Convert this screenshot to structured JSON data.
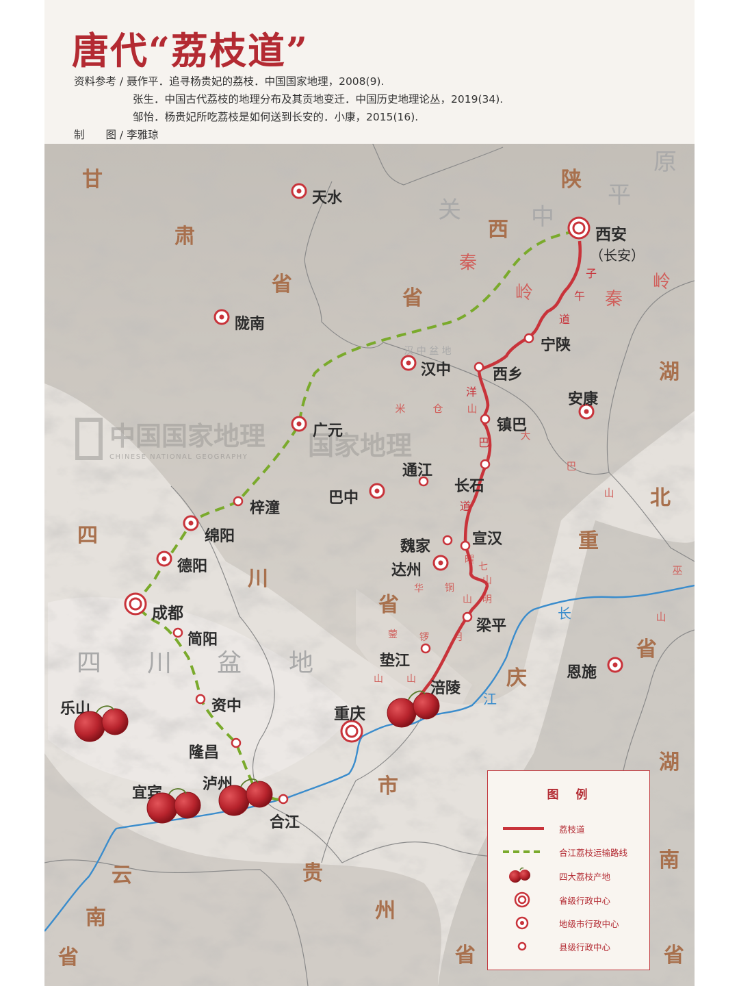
{
  "title": "唐代“荔枝道”",
  "references": {
    "label": "资料参考 / ",
    "items": [
      "聂作平．追寻杨贵妃的荔枝．中国国家地理，2008(9).",
      "张生．中国古代荔枝的地理分布及其贡地变迁．中国历史地理论丛，2019(34).",
      "邹怡．杨贵妃所吃荔枝是如何送到长安的．小康，2015(16)."
    ],
    "cartographer": "制　　图 / 李雅琼"
  },
  "watermark": "中国国家地理",
  "watermark2": "国家地理",
  "watermark_sub": "CHINESE NATIONAL GEOGRAPHY",
  "regions": [
    {
      "id": "gansu-1",
      "text": "甘"
    },
    {
      "id": "gansu-2",
      "text": "肃"
    },
    {
      "id": "gansu-3",
      "text": "省"
    },
    {
      "id": "shaanxi-1",
      "text": "陕"
    },
    {
      "id": "shaanxi-2",
      "text": "西"
    },
    {
      "id": "shaanxi-3",
      "text": "省"
    },
    {
      "id": "sichuan-1",
      "text": "四"
    },
    {
      "id": "sichuan-2",
      "text": "川"
    },
    {
      "id": "sichuan-3",
      "text": "省"
    },
    {
      "id": "hubei-1",
      "text": "湖"
    },
    {
      "id": "hubei-2",
      "text": "北"
    },
    {
      "id": "hubei-3",
      "text": "省"
    },
    {
      "id": "hunan-1",
      "text": "湖"
    },
    {
      "id": "hunan-2",
      "text": "南"
    },
    {
      "id": "hunan-3",
      "text": "省"
    },
    {
      "id": "chongqing-1",
      "text": "重"
    },
    {
      "id": "chongqing-2",
      "text": "庆"
    },
    {
      "id": "chongqing-3",
      "text": "市"
    },
    {
      "id": "guizhou-1",
      "text": "贵"
    },
    {
      "id": "guizhou-2",
      "text": "州"
    },
    {
      "id": "guizhou-3",
      "text": "省"
    },
    {
      "id": "yunnan-1",
      "text": "云"
    },
    {
      "id": "yunnan-2",
      "text": "南"
    },
    {
      "id": "yunnan-3",
      "text": "省"
    }
  ],
  "plains": [
    {
      "id": "guanzhong-1",
      "text": "关"
    },
    {
      "id": "guanzhong-2",
      "text": "中"
    },
    {
      "id": "guanzhong-3",
      "text": "平"
    },
    {
      "id": "guanzhong-4",
      "text": "原"
    },
    {
      "id": "basin-1",
      "text": "四"
    },
    {
      "id": "basin-2",
      "text": "川"
    },
    {
      "id": "basin-3",
      "text": "盆"
    },
    {
      "id": "basin-4",
      "text": "地"
    },
    {
      "id": "hanzhong-basin",
      "text": "汉 中 盆 地"
    }
  ],
  "mountains": [
    {
      "id": "qinling-1",
      "text": "秦"
    },
    {
      "id": "qinling-2",
      "text": "岭"
    },
    {
      "id": "qinling-3",
      "text": "秦"
    },
    {
      "id": "qinling-4",
      "text": "岭"
    },
    {
      "id": "micang-1",
      "text": "米"
    },
    {
      "id": "micang-2",
      "text": "仓"
    },
    {
      "id": "micang-3",
      "text": "山"
    },
    {
      "id": "daba-1",
      "text": "大"
    },
    {
      "id": "daba-2",
      "text": "巴"
    },
    {
      "id": "daba-3",
      "text": "山"
    },
    {
      "id": "wushan-1",
      "text": "巫"
    },
    {
      "id": "wushan-2",
      "text": "山"
    },
    {
      "id": "huaying-1",
      "text": "华"
    },
    {
      "id": "huaying-2",
      "text": "蓥"
    },
    {
      "id": "huaying-3",
      "text": "山"
    },
    {
      "id": "tongluo-1",
      "text": "铜"
    },
    {
      "id": "tongluo-2",
      "text": "锣"
    },
    {
      "id": "tongluo-3",
      "text": "山"
    },
    {
      "id": "mingyue-1",
      "text": "明"
    },
    {
      "id": "mingyue-2",
      "text": "月"
    },
    {
      "id": "mingyue-3",
      "text": "山"
    },
    {
      "id": "qiyao-1",
      "text": "七"
    },
    {
      "id": "qiyao-2",
      "text": "曜"
    },
    {
      "id": "qiyao-3",
      "text": "山"
    }
  ],
  "route_labels": [
    {
      "id": "ziwu-1",
      "text": "子"
    },
    {
      "id": "ziwu-2",
      "text": "午"
    },
    {
      "id": "ziwu-3",
      "text": "道"
    },
    {
      "id": "yangba-1",
      "text": "洋"
    },
    {
      "id": "yangba-2",
      "text": "巴"
    },
    {
      "id": "yangba-3",
      "text": "道"
    }
  ],
  "rivers": [
    {
      "id": "changjiang-1",
      "text": "长"
    },
    {
      "id": "changjiang-2",
      "text": "江"
    }
  ],
  "cities": [
    {
      "id": "xian",
      "name": "西安",
      "level": "province"
    },
    {
      "id": "changan",
      "name": "（长安）",
      "level": "alias"
    },
    {
      "id": "chengdu",
      "name": "成都",
      "level": "province"
    },
    {
      "id": "chongqing",
      "name": "重庆",
      "level": "province"
    },
    {
      "id": "tianshui",
      "name": "天水",
      "level": "prefecture"
    },
    {
      "id": "longnan",
      "name": "陇南",
      "level": "prefecture"
    },
    {
      "id": "hanzhong",
      "name": "汉中",
      "level": "prefecture"
    },
    {
      "id": "ankang",
      "name": "安康",
      "level": "prefecture"
    },
    {
      "id": "guangyuan",
      "name": "广元",
      "level": "prefecture"
    },
    {
      "id": "bazhong",
      "name": "巴中",
      "level": "prefecture"
    },
    {
      "id": "mianyang",
      "name": "绵阳",
      "level": "prefecture"
    },
    {
      "id": "deyang",
      "name": "德阳",
      "level": "prefecture"
    },
    {
      "id": "dazhou",
      "name": "达州",
      "level": "prefecture"
    },
    {
      "id": "enshi",
      "name": "恩施",
      "level": "prefecture"
    },
    {
      "id": "ningshan",
      "name": "宁陕",
      "level": "county"
    },
    {
      "id": "xixiang",
      "name": "西乡",
      "level": "county"
    },
    {
      "id": "zhenba",
      "name": "镇巴",
      "level": "county"
    },
    {
      "id": "tongjiang",
      "name": "通江",
      "level": "county"
    },
    {
      "id": "changshi",
      "name": "长石",
      "level": "county"
    },
    {
      "id": "zitong",
      "name": "梓潼",
      "level": "county"
    },
    {
      "id": "weijia",
      "name": "魏家",
      "level": "county"
    },
    {
      "id": "xuanhan",
      "name": "宣汉",
      "level": "county"
    },
    {
      "id": "liangping",
      "name": "梁平",
      "level": "county"
    },
    {
      "id": "dianjiang",
      "name": "垫江",
      "level": "county"
    },
    {
      "id": "fuling",
      "name": "涪陵",
      "level": "county"
    },
    {
      "id": "jianyang",
      "name": "简阳",
      "level": "county"
    },
    {
      "id": "zizhong",
      "name": "资中",
      "level": "county"
    },
    {
      "id": "longchang",
      "name": "隆昌",
      "level": "county"
    },
    {
      "id": "hejiang",
      "name": "合江",
      "level": "county"
    },
    {
      "id": "luzhou",
      "name": "泸州",
      "level": "origin"
    },
    {
      "id": "yibin",
      "name": "宜宾",
      "level": "origin"
    },
    {
      "id": "leshan",
      "name": "乐山",
      "level": "origin"
    }
  ],
  "legend": {
    "title": "图　例",
    "items": [
      {
        "key": "route",
        "label": "荔枝道"
      },
      {
        "key": "transport",
        "label": "合江荔枝运输路线"
      },
      {
        "key": "origin",
        "label": "四大荔枝产地"
      },
      {
        "key": "province",
        "label": "省级行政中心"
      },
      {
        "key": "prefecture",
        "label": "地级市行政中心"
      },
      {
        "key": "county",
        "label": "县级行政中心"
      }
    ]
  },
  "colors": {
    "route": "#c8333a",
    "transport": "#7aaa2c",
    "river": "#3a8ccc",
    "city": "#c8333a",
    "region_text": "#a8704d",
    "mountain_text": "#d0605c",
    "plain_text": "#a9a9a9"
  }
}
